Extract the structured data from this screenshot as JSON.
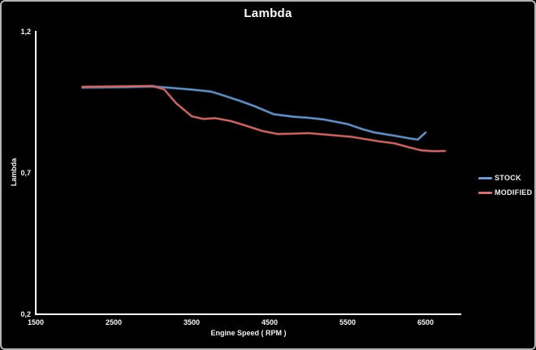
{
  "chart": {
    "background": "#000000",
    "border_color": "#b3b3b3",
    "text_color": "#f5f5f5",
    "axis_color": "#ffffff"
  },
  "chart_data": {
    "type": "line",
    "title": "Lambda",
    "xlabel": "Engine Speed ( RPM )",
    "ylabel": "Lambda",
    "xlim": [
      1500,
      6950
    ],
    "ylim": [
      0.2,
      1.2
    ],
    "grid": false,
    "legend_position": "right",
    "x_ticks": {
      "values": [
        1500,
        2500,
        3500,
        4500,
        5500,
        6500
      ],
      "labels": [
        "1500",
        "2500",
        "3500",
        "4500",
        "5500",
        "6500"
      ]
    },
    "y_ticks": {
      "values": [
        1.2,
        0.7,
        0.2
      ],
      "labels": [
        "1,2",
        "0,7",
        "0,2"
      ]
    },
    "series": [
      {
        "name": "STOCK",
        "color": "#4F81BD",
        "points": [
          [
            2100,
            1.002
          ],
          [
            2400,
            1.003
          ],
          [
            2700,
            1.004
          ],
          [
            3000,
            1.006
          ],
          [
            3200,
            1.002
          ],
          [
            3500,
            0.995
          ],
          [
            3750,
            0.988
          ],
          [
            3900,
            0.975
          ],
          [
            4100,
            0.957
          ],
          [
            4300,
            0.937
          ],
          [
            4550,
            0.908
          ],
          [
            4800,
            0.899
          ],
          [
            5000,
            0.895
          ],
          [
            5200,
            0.889
          ],
          [
            5500,
            0.873
          ],
          [
            5700,
            0.854
          ],
          [
            5850,
            0.843
          ],
          [
            6100,
            0.832
          ],
          [
            6300,
            0.822
          ],
          [
            6400,
            0.818
          ],
          [
            6500,
            0.843
          ]
        ]
      },
      {
        "name": "MODIFIED",
        "color": "#C0504D",
        "points": [
          [
            2100,
            1.005
          ],
          [
            2400,
            1.006
          ],
          [
            2700,
            1.007
          ],
          [
            3000,
            1.008
          ],
          [
            3150,
            0.995
          ],
          [
            3300,
            0.947
          ],
          [
            3500,
            0.901
          ],
          [
            3650,
            0.891
          ],
          [
            3800,
            0.894
          ],
          [
            4000,
            0.884
          ],
          [
            4200,
            0.867
          ],
          [
            4400,
            0.849
          ],
          [
            4600,
            0.838
          ],
          [
            4800,
            0.839
          ],
          [
            5000,
            0.841
          ],
          [
            5300,
            0.834
          ],
          [
            5550,
            0.828
          ],
          [
            5900,
            0.812
          ],
          [
            6100,
            0.805
          ],
          [
            6300,
            0.79
          ],
          [
            6450,
            0.78
          ],
          [
            6600,
            0.777
          ],
          [
            6750,
            0.778
          ]
        ]
      }
    ]
  }
}
